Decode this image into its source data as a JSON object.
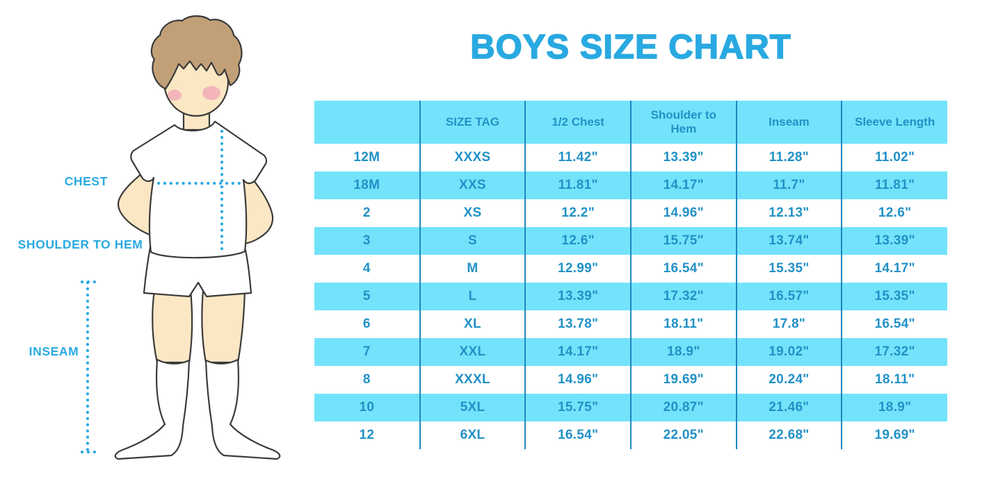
{
  "title": "BOYS SIZE CHART",
  "colors": {
    "accent": "#29A9E1",
    "row_cyan": "#73E3FB",
    "divider": "#1E86C0",
    "table_text": "#2191C6",
    "skin": "#FBE7C4",
    "hair": "#C2A077",
    "cheek": "#F0A3B5",
    "outline": "#3A3A3A"
  },
  "figure": {
    "description": "boy-measurement-illustration",
    "labels": [
      {
        "id": "chest",
        "text": "CHEST"
      },
      {
        "id": "shoulder_to_hem",
        "text": "SHOULDER TO HEM"
      },
      {
        "id": "inseam",
        "text": "INSEAM"
      }
    ]
  },
  "chart_data": {
    "type": "table",
    "columns": [
      "",
      "SIZE TAG",
      "1/2 Chest",
      "Shoulder to Hem",
      "Inseam",
      "Sleeve Length"
    ],
    "rows": [
      [
        "12M",
        "XXXS",
        "11.42\"",
        "13.39\"",
        "11.28\"",
        "11.02\""
      ],
      [
        "18M",
        "XXS",
        "11.81\"",
        "14.17\"",
        "11.7\"",
        "11.81\""
      ],
      [
        "2",
        "XS",
        "12.2\"",
        "14.96\"",
        "12.13\"",
        "12.6\""
      ],
      [
        "3",
        "S",
        "12.6\"",
        "15.75\"",
        "13.74\"",
        "13.39\""
      ],
      [
        "4",
        "M",
        "12.99\"",
        "16.54\"",
        "15.35\"",
        "14.17\""
      ],
      [
        "5",
        "L",
        "13.39\"",
        "17.32\"",
        "16.57\"",
        "15.35\""
      ],
      [
        "6",
        "XL",
        "13.78\"",
        "18.11\"",
        "17.8\"",
        "16.54\""
      ],
      [
        "7",
        "XXL",
        "14.17\"",
        "18.9\"",
        "19.02\"",
        "17.32\""
      ],
      [
        "8",
        "XXXL",
        "14.96\"",
        "19.69\"",
        "20.24\"",
        "18.11\""
      ],
      [
        "10",
        "5XL",
        "15.75\"",
        "20.87\"",
        "21.46\"",
        "18.9\""
      ],
      [
        "12",
        "6XL",
        "16.54\"",
        "22.05\"",
        "22.68\"",
        "19.69\""
      ]
    ]
  }
}
